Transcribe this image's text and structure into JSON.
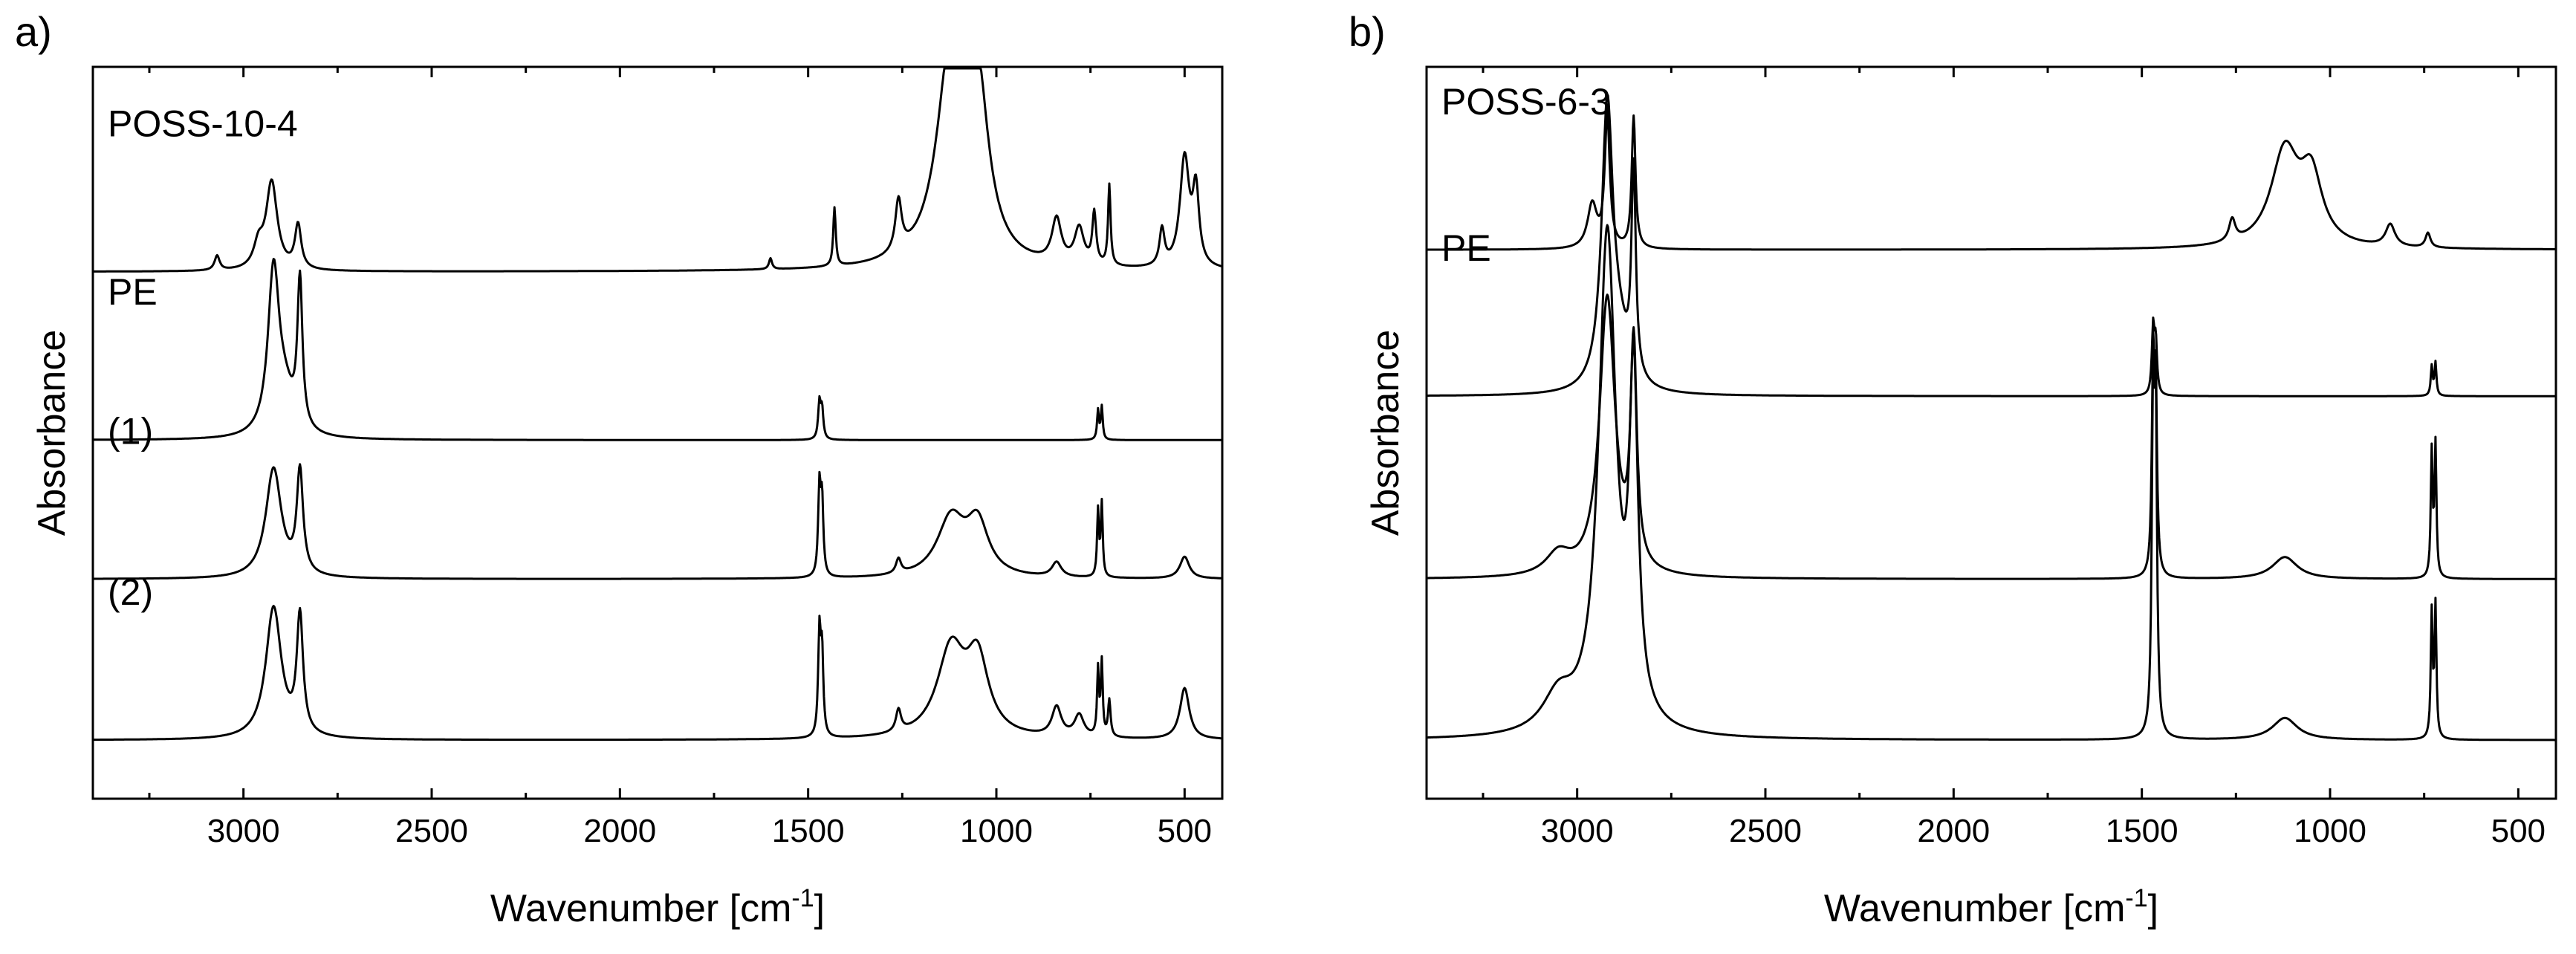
{
  "chart_data": [
    {
      "type": "line",
      "panel_label": "a)",
      "xlabel": "Wavenumber [cm",
      "xlabel_sup": "-1",
      "xlabel_end": "]",
      "ylabel": "Absorbance",
      "xlim": [
        3400,
        400
      ],
      "x_ticks": [
        3000,
        2500,
        2000,
        1500,
        1000,
        500
      ],
      "x_tick_labels": [
        "3000",
        "2500",
        "2000",
        "1500",
        "1000",
        "500"
      ],
      "y_ticks_visible": false,
      "series": [
        {
          "name": "POSS-10-4",
          "label": "POSS-10-4",
          "baseline": 0.72,
          "peaks": [
            [
              3070,
              0.02,
              8
            ],
            [
              2960,
              0.03,
              15
            ],
            [
              2925,
              0.12,
              18
            ],
            [
              2855,
              0.06,
              10
            ],
            [
              1600,
              0.015,
              5
            ],
            [
              1430,
              0.08,
              4
            ],
            [
              1260,
              0.07,
              10
            ],
            [
              1120,
              0.29,
              45
            ],
            [
              1050,
              0.22,
              35
            ],
            [
              840,
              0.06,
              15
            ],
            [
              780,
              0.05,
              15
            ],
            [
              740,
              0.07,
              6
            ],
            [
              700,
              0.11,
              4
            ],
            [
              560,
              0.05,
              8
            ],
            [
              500,
              0.15,
              15
            ],
            [
              470,
              0.1,
              10
            ]
          ]
        },
        {
          "name": "PE",
          "label": "PE",
          "baseline": 0.49,
          "peaks": [
            [
              2920,
              0.22,
              18
            ],
            [
              2850,
              0.2,
              8
            ],
            [
              2890,
              0.05,
              30
            ],
            [
              1470,
              0.05,
              4
            ],
            [
              1463,
              0.04,
              4
            ],
            [
              730,
              0.04,
              3
            ],
            [
              720,
              0.045,
              3
            ]
          ]
        },
        {
          "name": "(1)",
          "label": "(1)",
          "baseline": 0.3,
          "peaks": [
            [
              2920,
              0.15,
              25
            ],
            [
              2850,
              0.14,
              10
            ],
            [
              1470,
              0.12,
              4
            ],
            [
              1463,
              0.1,
              4
            ],
            [
              1260,
              0.02,
              8
            ],
            [
              1120,
              0.08,
              45
            ],
            [
              1050,
              0.07,
              35
            ],
            [
              840,
              0.02,
              15
            ],
            [
              730,
              0.09,
              3
            ],
            [
              720,
              0.1,
              3
            ],
            [
              500,
              0.03,
              15
            ]
          ]
        },
        {
          "name": "(2)",
          "label": "(2)",
          "baseline": 0.08,
          "peaks": [
            [
              2920,
              0.18,
              25
            ],
            [
              2850,
              0.16,
              10
            ],
            [
              1470,
              0.14,
              4
            ],
            [
              1463,
              0.11,
              4
            ],
            [
              1260,
              0.03,
              8
            ],
            [
              1120,
              0.12,
              45
            ],
            [
              1050,
              0.1,
              35
            ],
            [
              840,
              0.04,
              15
            ],
            [
              780,
              0.03,
              15
            ],
            [
              730,
              0.09,
              3
            ],
            [
              720,
              0.1,
              3
            ],
            [
              700,
              0.05,
              4
            ],
            [
              500,
              0.07,
              15
            ]
          ]
        }
      ]
    },
    {
      "type": "line",
      "panel_label": "b)",
      "xlabel": "Wavenumber [cm",
      "xlabel_sup": "-1",
      "xlabel_end": "]",
      "ylabel": "Absorbance",
      "xlim": [
        3400,
        400
      ],
      "x_ticks": [
        3000,
        2500,
        2000,
        1500,
        1000,
        500
      ],
      "x_tick_labels": [
        "3000",
        "2500",
        "2000",
        "1500",
        "1000",
        "500"
      ],
      "y_ticks_visible": false,
      "series": [
        {
          "name": "POSS-6-3",
          "label": "POSS-6-3",
          "baseline": 0.75,
          "peaks": [
            [
              2960,
              0.06,
              15
            ],
            [
              2920,
              0.18,
              8
            ],
            [
              2850,
              0.18,
              6
            ],
            [
              1260,
              0.03,
              10
            ],
            [
              1120,
              0.13,
              45
            ],
            [
              1050,
              0.09,
              35
            ],
            [
              840,
              0.03,
              15
            ],
            [
              740,
              0.02,
              8
            ]
          ]
        },
        {
          "name": "PE",
          "label": "PE",
          "baseline": 0.55,
          "peaks": [
            [
              2920,
              0.38,
              18
            ],
            [
              2850,
              0.28,
              7
            ],
            [
              2890,
              0.06,
              30
            ],
            [
              1470,
              0.09,
              4
            ],
            [
              1463,
              0.07,
              4
            ],
            [
              730,
              0.04,
              3
            ],
            [
              720,
              0.045,
              3
            ]
          ]
        },
        {
          "name": "unlabeled-3",
          "label": "",
          "baseline": 0.3,
          "peaks": [
            [
              2920,
              0.38,
              25
            ],
            [
              2850,
              0.3,
              10
            ],
            [
              3050,
              0.03,
              40
            ],
            [
              1470,
              0.28,
              4
            ],
            [
              1463,
              0.24,
              4
            ],
            [
              1120,
              0.03,
              40
            ],
            [
              730,
              0.17,
              3
            ],
            [
              720,
              0.18,
              3
            ]
          ]
        },
        {
          "name": "unlabeled-4",
          "label": "",
          "baseline": 0.08,
          "peaks": [
            [
              2920,
              0.68,
              28
            ],
            [
              2850,
              0.45,
              14
            ],
            [
              3050,
              0.05,
              50
            ],
            [
              1470,
              0.45,
              4
            ],
            [
              1463,
              0.4,
              4
            ],
            [
              1120,
              0.03,
              40
            ],
            [
              730,
              0.17,
              3
            ],
            [
              720,
              0.18,
              3
            ]
          ]
        }
      ]
    }
  ]
}
